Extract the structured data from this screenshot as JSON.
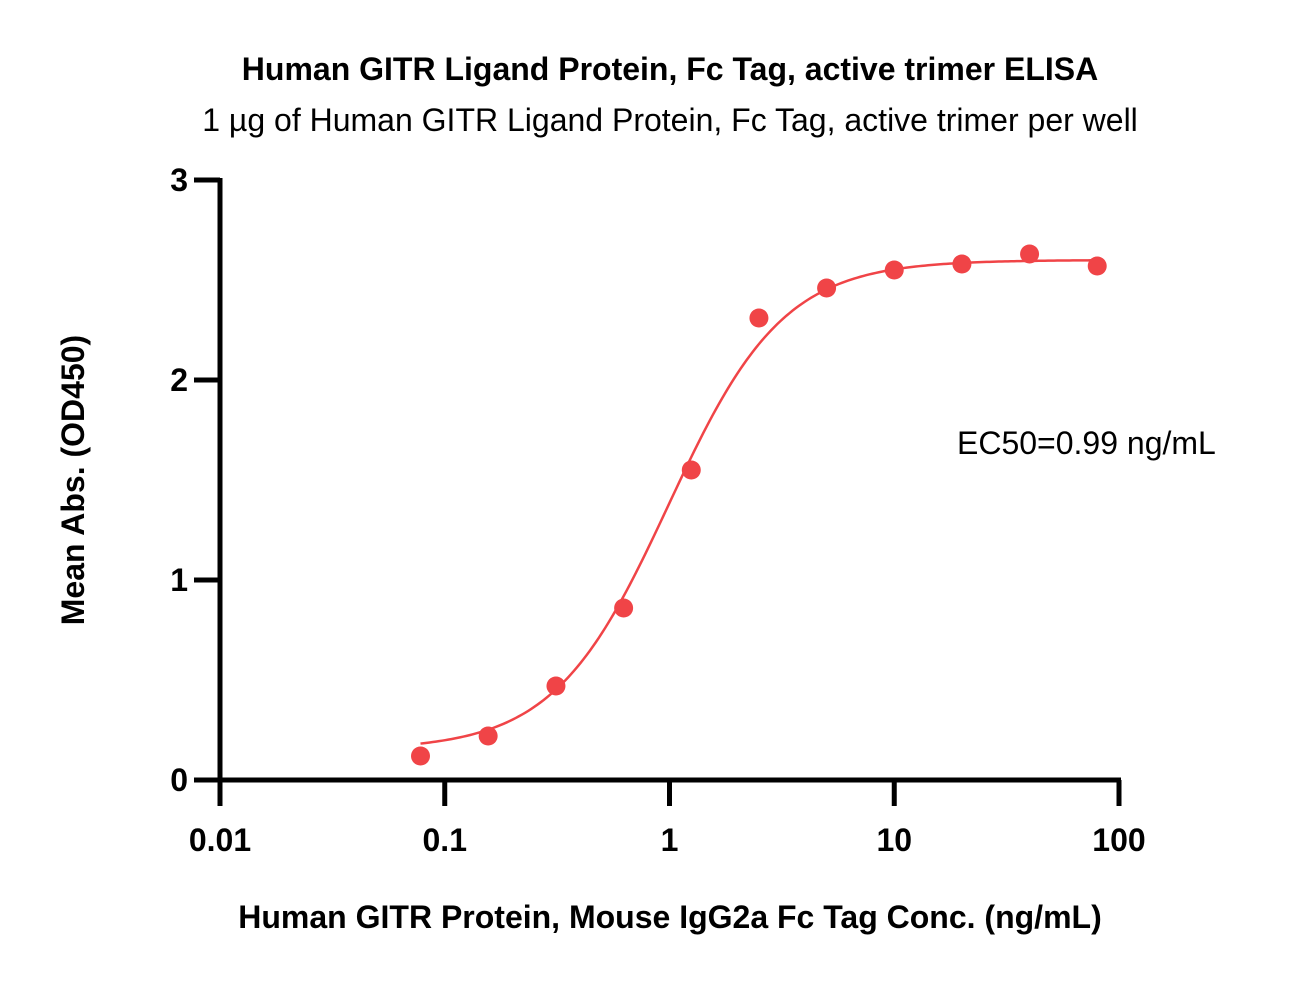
{
  "chart_data": {
    "type": "scatter",
    "title": "Human GITR Ligand Protein, Fc Tag, active trimer ELISA",
    "subtitle": "1 µg of Human GITR Ligand Protein, Fc Tag, active trimer per well",
    "xlabel": "Human GITR Protein, Mouse IgG2a Fc Tag Conc. (ng/mL)",
    "ylabel": "Mean Abs. (OD450)",
    "xscale": "log",
    "xlim": [
      0.01,
      100
    ],
    "ylim": [
      0,
      3
    ],
    "xticks": [
      "0.01",
      "0.1",
      "1",
      "10",
      "100"
    ],
    "yticks": [
      "0",
      "1",
      "2",
      "3"
    ],
    "grid": false,
    "legend": "none",
    "color": "#f04447",
    "annotation": "EC50=0.99 ng/mL",
    "series": [
      {
        "x": [
          0.078,
          0.156,
          0.3125,
          0.625,
          1.25,
          2.5,
          5,
          10,
          20,
          40,
          80
        ],
        "y": [
          0.12,
          0.22,
          0.47,
          0.86,
          1.55,
          2.31,
          2.46,
          2.55,
          2.58,
          2.63,
          2.57
        ]
      }
    ],
    "fit": {
      "model": "4PL",
      "bottom": 0.15,
      "top": 2.6,
      "ec50": 0.99,
      "hill": 1.7
    }
  }
}
